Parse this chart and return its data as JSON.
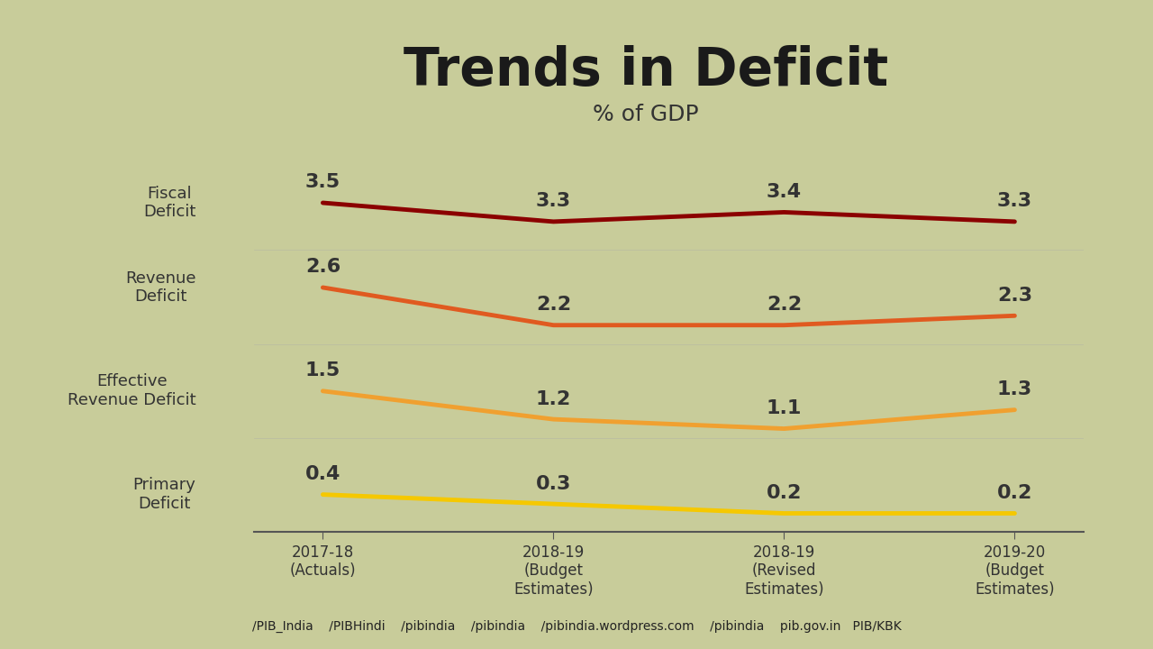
{
  "title": "Trends in Deficit",
  "subtitle": "% of GDP",
  "bg_color": "#c8cc9a",
  "plot_bg_color": "#c8cc9a",
  "x_labels": [
    "2017-18\n(Actuals)",
    "2018-19\n(Budget\nEstimates)",
    "2018-19\n(Revised\nEstimates)",
    "2019-20\n(Budget\nEstimates)"
  ],
  "series": [
    {
      "name": "Fiscal\nDeficit",
      "values": [
        3.5,
        3.3,
        3.4,
        3.3
      ],
      "color": "#8b0000",
      "linewidth": 3.5
    },
    {
      "name": "Revenue\nDeficit",
      "values": [
        2.6,
        2.2,
        2.2,
        2.3
      ],
      "color": "#e05a20",
      "linewidth": 3.5
    },
    {
      "name": "Effective\nRevenue Deficit",
      "values": [
        1.5,
        1.2,
        1.1,
        1.3
      ],
      "color": "#f0a030",
      "linewidth": 3.5
    },
    {
      "name": "Primary\nDeficit",
      "values": [
        0.4,
        0.3,
        0.2,
        0.2
      ],
      "color": "#f5c800",
      "linewidth": 3.5
    }
  ],
  "ylim": [
    0.0,
    4.0
  ],
  "label_fontsize": 13,
  "title_fontsize": 42,
  "subtitle_fontsize": 18,
  "value_fontsize": 16,
  "ylabel_fontsize": 13,
  "footer_text": "/PIB_India    /PIBHindi    /pibindia    /pibindia    /pibindia.wordpress.com    /pibindia    pib.gov.in   PIB/KBK",
  "footer_color": "#333333",
  "footer_fontsize": 10
}
